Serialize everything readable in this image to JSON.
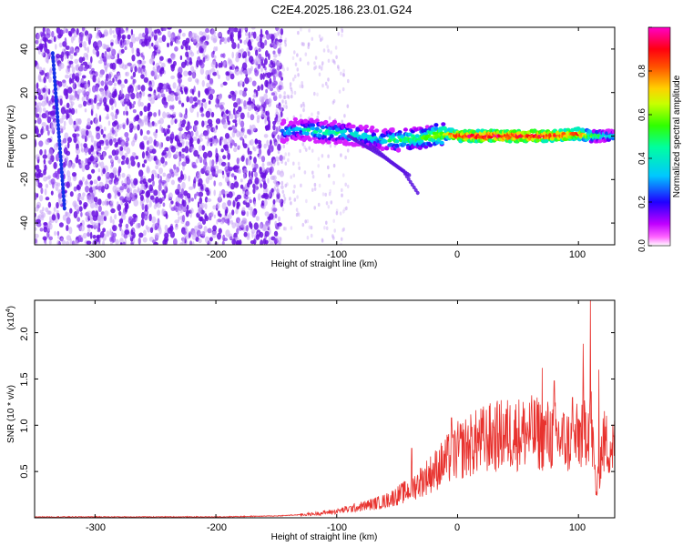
{
  "title": "C2E4.2025.186.23.01.G24",
  "top_panel": {
    "xlabel": "Height of straight line (km)",
    "ylabel": "Frequency (Hz)",
    "x_ticks": [
      "-300",
      "-200",
      "-100",
      "0",
      "100"
    ],
    "y_ticks": [
      "40",
      "20",
      "0",
      "-20",
      "-40"
    ],
    "colorbar_label": "Normalized spectral amplitude",
    "colorbar_ticks": [
      "0.0",
      "0.2",
      "0.4",
      "0.6",
      "0.8"
    ]
  },
  "bottom_panel": {
    "xlabel": "Height of straight line (km)",
    "ylabel": "SNR (10 * v/v)",
    "scale_note": "(x10",
    "scale_exp": "4",
    "scale_close": ")",
    "x_ticks": [
      "-300",
      "-200",
      "-100",
      "0",
      "100"
    ],
    "y_ticks": [
      "2.0",
      "1.5",
      "1.0",
      "0.5"
    ]
  },
  "colors": {
    "line": "#e8322e",
    "spectrogram_dense": "#6a11e0",
    "spectrogram_light": "#c6a2f5",
    "ridge_peak": "#ff2a2a"
  },
  "chart_data": [
    {
      "type": "heatmap",
      "title": "C2E4.2025.186.23.01.G24",
      "xlabel": "Height of straight line (km)",
      "ylabel": "Frequency (Hz)",
      "xlim": [
        -350,
        130
      ],
      "ylim": [
        -50,
        50
      ],
      "colorbar": {
        "label": "Normalized spectral amplitude",
        "range": [
          0,
          1
        ],
        "colors": [
          "#ffffff",
          "#ff00ff",
          "#0000ff",
          "#00ffff",
          "#00ff00",
          "#ffff00",
          "#ff0000",
          "#ff00ff"
        ]
      },
      "ridge": {
        "x": [
          -145,
          -130,
          -110,
          -90,
          -70,
          -50,
          -30,
          -10,
          0,
          20,
          40,
          60,
          80,
          100,
          110,
          130
        ],
        "y": [
          2,
          3,
          2,
          1,
          -1,
          -2,
          -1,
          1,
          0,
          0,
          0,
          0,
          0,
          1,
          0,
          0
        ],
        "amplitude": [
          0.35,
          0.4,
          0.45,
          0.45,
          0.4,
          0.5,
          0.55,
          0.7,
          0.9,
          0.95,
          0.95,
          0.95,
          0.9,
          0.85,
          0.6,
          0.4
        ]
      },
      "diagonal_streak": {
        "x": [
          -335,
          -325
        ],
        "y": [
          38,
          -35
        ]
      },
      "falling_tails": [
        {
          "x": [
            -90,
            -75,
            -60,
            -45,
            -32
          ],
          "y": [
            0,
            -5,
            -10,
            -16,
            -27
          ]
        },
        {
          "x": [
            -70,
            -55,
            -40
          ],
          "y": [
            -5,
            -12,
            -18
          ]
        }
      ]
    },
    {
      "type": "line",
      "xlabel": "Height of straight line (km)",
      "ylabel": "SNR (10 * v/v)",
      "y_multiplier": 10000,
      "xlim": [
        -350,
        130
      ],
      "ylim": [
        0,
        2.35
      ],
      "series": [
        {
          "x": [
            -350,
            -300,
            -250,
            -200,
            -150,
            -120,
            -100,
            -80,
            -60,
            -40,
            -20,
            0,
            20,
            40,
            60,
            80,
            95,
            105,
            110,
            115,
            120,
            130
          ],
          "y": [
            0.01,
            0.01,
            0.01,
            0.01,
            0.02,
            0.04,
            0.07,
            0.12,
            0.18,
            0.3,
            0.5,
            0.72,
            0.84,
            0.9,
            0.92,
            0.88,
            0.8,
            0.95,
            1.1,
            0.25,
            0.82,
            0.76
          ],
          "spikes": [
            {
              "x": -38,
              "y": 0.75
            },
            {
              "x": -5,
              "y": 1.08
            },
            {
              "x": 30,
              "y": 0.98
            },
            {
              "x": 70,
              "y": 1.62
            },
            {
              "x": 80,
              "y": 1.48
            },
            {
              "x": 95,
              "y": 1.3
            },
            {
              "x": 104,
              "y": 1.88
            },
            {
              "x": 110,
              "y": 2.35
            },
            {
              "x": 117,
              "y": 1.6
            }
          ]
        }
      ]
    }
  ]
}
